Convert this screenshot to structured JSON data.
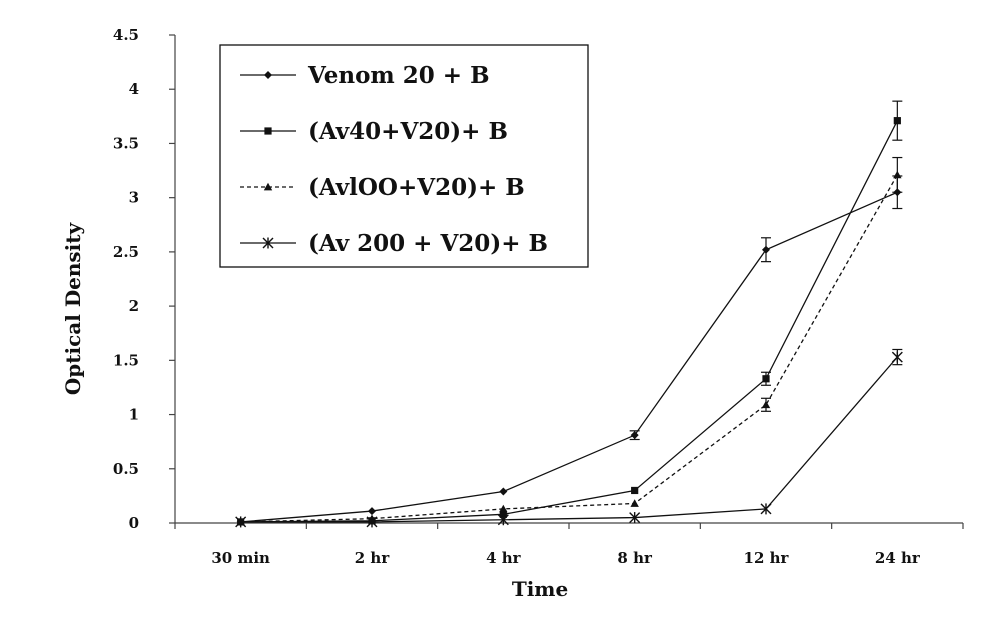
{
  "chart_data": {
    "type": "line",
    "xlabel": "Time",
    "ylabel": "Optical Density",
    "categories": [
      "30 min",
      "2 hr",
      "4 hr",
      "8 hr",
      "12 hr",
      "24 hr"
    ],
    "ylim": [
      0,
      4.5
    ],
    "yticks": [
      "0",
      "0.5",
      "1",
      "1.5",
      "2",
      "2.5",
      "3",
      "3.5",
      "4",
      "4.5"
    ],
    "grid": false,
    "legend_position": "top-left",
    "series": [
      {
        "name": "Venom 20 + B",
        "marker": "diamond",
        "dash": "solid",
        "values": [
          0.01,
          0.11,
          0.29,
          0.81,
          2.52,
          3.05
        ],
        "errors": [
          0,
          0,
          0,
          0.04,
          0.11,
          0.15
        ]
      },
      {
        "name": "(Av40+V20)+ B",
        "marker": "square",
        "dash": "solid",
        "values": [
          0.01,
          0.02,
          0.08,
          0.3,
          1.33,
          3.71
        ],
        "errors": [
          0,
          0,
          0,
          0,
          0.06,
          0.18
        ]
      },
      {
        "name": "(AvlOO+V20)+ B",
        "marker": "triangle",
        "dash": "dashed",
        "values": [
          0.01,
          0.04,
          0.13,
          0.18,
          1.09,
          3.21
        ],
        "errors": [
          0,
          0,
          0,
          0,
          0.06,
          0.16
        ]
      },
      {
        "name": "(Av 200 + V20)+ B",
        "marker": "star",
        "dash": "solid",
        "values": [
          0.01,
          0.01,
          0.03,
          0.05,
          0.13,
          1.53
        ],
        "errors": [
          0,
          0,
          0,
          0,
          0,
          0.07
        ]
      }
    ]
  }
}
